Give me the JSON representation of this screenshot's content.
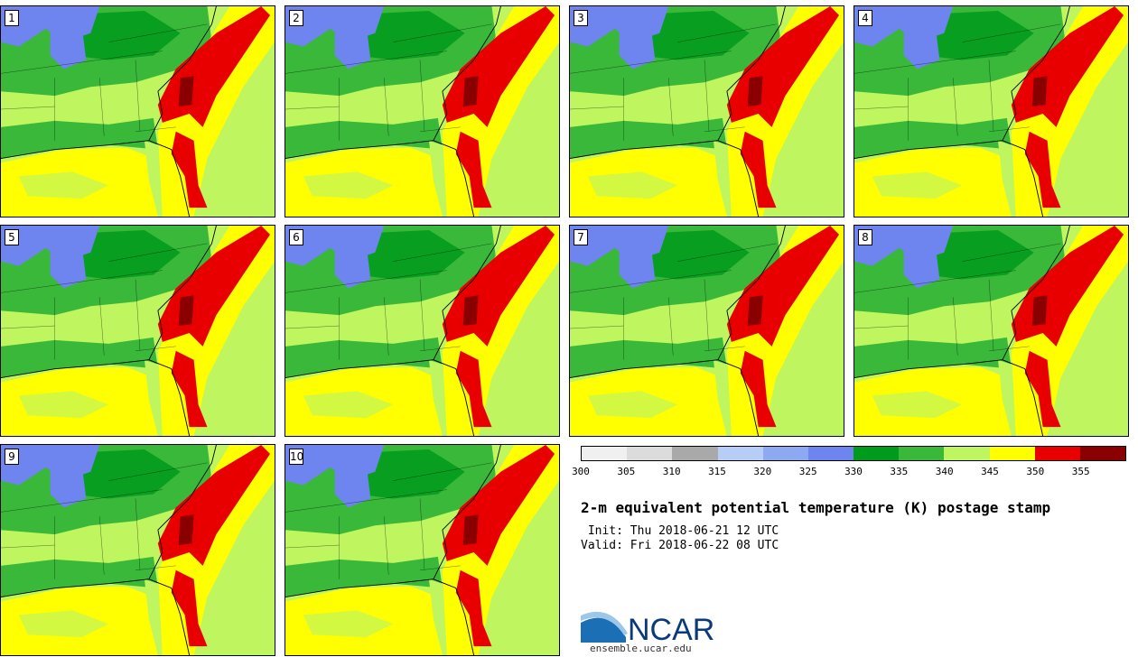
{
  "panels": [
    {
      "label": "1"
    },
    {
      "label": "2"
    },
    {
      "label": "3"
    },
    {
      "label": "4"
    },
    {
      "label": "5"
    },
    {
      "label": "6"
    },
    {
      "label": "7"
    },
    {
      "label": "8"
    },
    {
      "label": "9"
    },
    {
      "label": "10"
    }
  ],
  "legend": {
    "colors": [
      "#f0f0f0",
      "#dcdcdc",
      "#a9a9a9",
      "#b6cdf5",
      "#8ea9f2",
      "#6e84ee",
      "#009a1c",
      "#3ab83a",
      "#bff55e",
      "#ffff00",
      "#e80000",
      "#8a0000"
    ],
    "ticks": [
      "300",
      "305",
      "310",
      "315",
      "320",
      "325",
      "330",
      "335",
      "340",
      "345",
      "350",
      "355"
    ]
  },
  "title": "2-m equivalent potential temperature (K) postage stamp",
  "init": " Init: Thu 2018-06-21 12 UTC",
  "valid": "Valid: Fri 2018-06-22 08 UTC",
  "logo": {
    "text": "NCAR",
    "url": "ensemble.ucar.edu"
  }
}
